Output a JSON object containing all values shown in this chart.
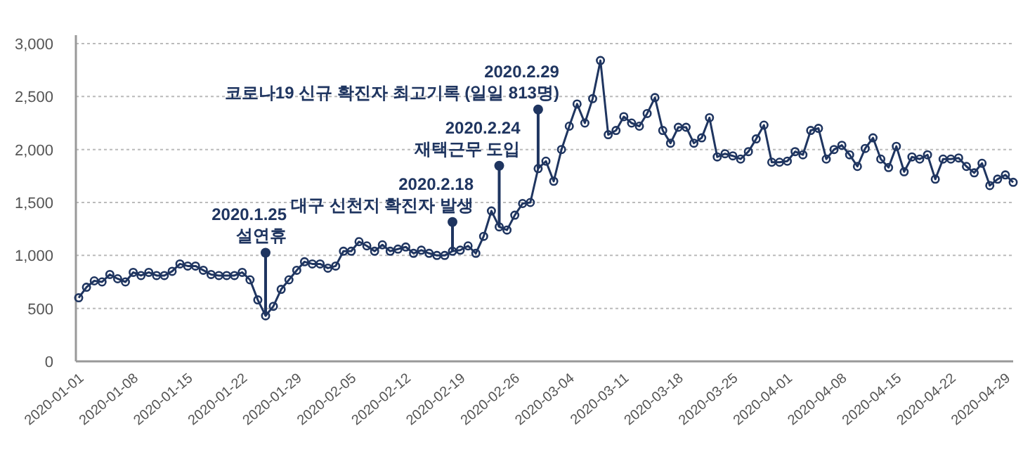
{
  "chart_data": {
    "type": "line",
    "x": [
      "2020-01-01",
      "2020-01-02",
      "2020-01-03",
      "2020-01-04",
      "2020-01-05",
      "2020-01-06",
      "2020-01-07",
      "2020-01-08",
      "2020-01-09",
      "2020-01-10",
      "2020-01-11",
      "2020-01-12",
      "2020-01-13",
      "2020-01-14",
      "2020-01-15",
      "2020-01-16",
      "2020-01-17",
      "2020-01-18",
      "2020-01-19",
      "2020-01-20",
      "2020-01-21",
      "2020-01-22",
      "2020-01-23",
      "2020-01-24",
      "2020-01-25",
      "2020-01-26",
      "2020-01-27",
      "2020-01-28",
      "2020-01-29",
      "2020-01-30",
      "2020-01-31",
      "2020-02-01",
      "2020-02-02",
      "2020-02-03",
      "2020-02-04",
      "2020-02-05",
      "2020-02-06",
      "2020-02-07",
      "2020-02-08",
      "2020-02-09",
      "2020-02-10",
      "2020-02-11",
      "2020-02-12",
      "2020-02-13",
      "2020-02-14",
      "2020-02-15",
      "2020-02-16",
      "2020-02-17",
      "2020-02-18",
      "2020-02-19",
      "2020-02-20",
      "2020-02-21",
      "2020-02-22",
      "2020-02-23",
      "2020-02-24",
      "2020-02-25",
      "2020-02-26",
      "2020-02-27",
      "2020-02-28",
      "2020-02-29",
      "2020-03-01",
      "2020-03-02",
      "2020-03-03",
      "2020-03-04",
      "2020-03-05",
      "2020-03-06",
      "2020-03-07",
      "2020-03-08",
      "2020-03-09",
      "2020-03-10",
      "2020-03-11",
      "2020-03-12",
      "2020-03-13",
      "2020-03-14",
      "2020-03-15",
      "2020-03-16",
      "2020-03-17",
      "2020-03-18",
      "2020-03-19",
      "2020-03-20",
      "2020-03-21",
      "2020-03-22",
      "2020-03-23",
      "2020-03-24",
      "2020-03-25",
      "2020-03-26",
      "2020-03-27",
      "2020-03-28",
      "2020-03-29",
      "2020-03-30",
      "2020-03-31",
      "2020-04-01",
      "2020-04-02",
      "2020-04-03",
      "2020-04-04",
      "2020-04-05",
      "2020-04-06",
      "2020-04-07",
      "2020-04-08",
      "2020-04-09",
      "2020-04-10",
      "2020-04-11",
      "2020-04-12",
      "2020-04-13",
      "2020-04-14",
      "2020-04-15",
      "2020-04-16",
      "2020-04-17",
      "2020-04-18",
      "2020-04-19",
      "2020-04-20",
      "2020-04-21",
      "2020-04-22",
      "2020-04-23",
      "2020-04-24",
      "2020-04-25",
      "2020-04-26",
      "2020-04-27",
      "2020-04-28",
      "2020-04-29",
      "2020-04-30"
    ],
    "series": [
      {
        "color": "#1f3560",
        "values": [
          600,
          700,
          760,
          750,
          820,
          780,
          750,
          840,
          810,
          840,
          810,
          810,
          850,
          920,
          900,
          900,
          860,
          820,
          810,
          810,
          810,
          840,
          770,
          580,
          430,
          520,
          680,
          770,
          860,
          940,
          920,
          920,
          880,
          900,
          1040,
          1040,
          1130,
          1090,
          1040,
          1100,
          1040,
          1060,
          1080,
          1020,
          1050,
          1020,
          1000,
          1000,
          1040,
          1050,
          1090,
          1020,
          1180,
          1420,
          1270,
          1240,
          1380,
          1490,
          1500,
          1820,
          1890,
          1700,
          2000,
          2220,
          2430,
          2250,
          2480,
          2840,
          2140,
          2180,
          2310,
          2250,
          2220,
          2340,
          2490,
          2180,
          2060,
          2210,
          2210,
          2060,
          2110,
          2300,
          1930,
          1960,
          1940,
          1910,
          1980,
          2100,
          2230,
          1880,
          1880,
          1890,
          1980,
          1950,
          2180,
          2200,
          1910,
          2000,
          2040,
          1950,
          1840,
          2010,
          2110,
          1910,
          1830,
          2030,
          1790,
          1930,
          1910,
          1950,
          1720,
          1910,
          1910,
          1920,
          1840,
          1780,
          1870,
          1660,
          1720,
          1760,
          1690
        ]
      }
    ],
    "xlim": [
      "2020-01-01",
      "2020-04-30"
    ],
    "xticks": [
      "2020-01-01",
      "2020-01-08",
      "2020-01-15",
      "2020-01-22",
      "2020-01-29",
      "2020-02-05",
      "2020-02-12",
      "2020-02-19",
      "2020-02-26",
      "2020-03-04",
      "2020-03-11",
      "2020-03-18",
      "2020-03-25",
      "2020-04-01",
      "2020-04-08",
      "2020-04-15",
      "2020-04-22",
      "2020-04-29"
    ],
    "ylim": [
      0,
      3000
    ],
    "yticks": [
      0,
      500,
      {
        "value": 1000,
        "label": "1,000"
      },
      {
        "value": 1500,
        "label": "1,500"
      },
      {
        "value": 2000,
        "label": "2,000"
      },
      {
        "value": 2500,
        "label": "2,500"
      },
      {
        "value": 3000,
        "label": "3,000"
      }
    ],
    "grid": "y",
    "marker": "circle",
    "line_style": "solid",
    "annotations": [
      "2020.1.25",
      {
        "text": "설연휴",
        "x": "2020-01-25",
        "y": 430
      },
      "2020.2.18",
      {
        "text": "대구 신천지 확진자 발생",
        "x": "2020-02-18",
        "y": 1040
      },
      "2020.2.24",
      {
        "text": "재택근무 도입",
        "x": "2020-02-24",
        "y": 1270
      },
      "2020.2.29",
      {
        "text": "코로나19 신규 확진자 최고기록 (일일 813명)",
        "x": "2020-02-29",
        "y": 1820
      }
    ]
  }
}
